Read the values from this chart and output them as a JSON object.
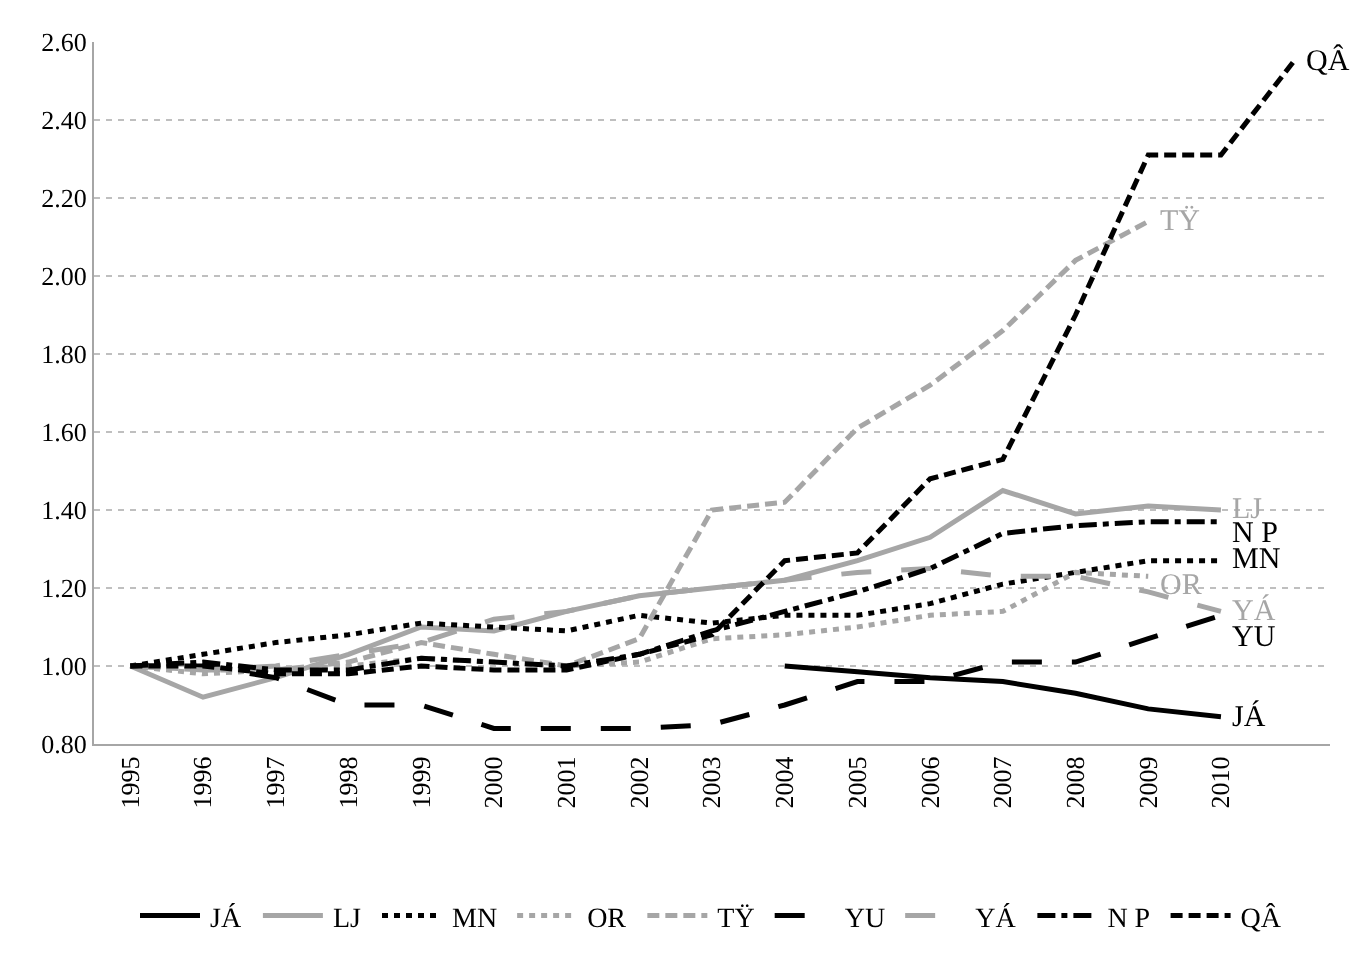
{
  "chart_data": {
    "type": "line",
    "categories": [
      "1995",
      "1996",
      "1997",
      "1998",
      "1999",
      "2000",
      "2001",
      "2002",
      "2003",
      "2004",
      "2005",
      "2006",
      "2007",
      "2008",
      "2009",
      "2010",
      null
    ],
    "series": [
      {
        "name": "JÁ",
        "color": "#000000",
        "line_style": "solid",
        "values": [
          null,
          null,
          null,
          null,
          null,
          null,
          null,
          null,
          null,
          1.0,
          0.985,
          0.97,
          0.96,
          0.93,
          0.89,
          0.87,
          null
        ]
      },
      {
        "name": "LJ",
        "color": "#a6a6a6",
        "line_style": "solid",
        "values": [
          1.0,
          0.92,
          0.97,
          1.03,
          1.1,
          1.09,
          1.14,
          1.18,
          1.2,
          1.22,
          1.27,
          1.33,
          1.45,
          1.39,
          1.41,
          1.4,
          null
        ]
      },
      {
        "name": "MN",
        "color": "#000000",
        "line_style": "dotted",
        "values": [
          1.0,
          1.03,
          1.06,
          1.08,
          1.11,
          1.1,
          1.09,
          1.13,
          1.11,
          1.13,
          1.13,
          1.16,
          1.21,
          1.24,
          1.27,
          1.27,
          null
        ]
      },
      {
        "name": "OR",
        "color": "#a6a6a6",
        "line_style": "dotted",
        "values": [
          1.0,
          0.98,
          0.99,
          1.0,
          1.02,
          1.01,
          1.0,
          1.01,
          1.07,
          1.08,
          1.1,
          1.13,
          1.14,
          1.24,
          1.23,
          null,
          null
        ]
      },
      {
        "name": "TŸ",
        "color": "#a6a6a6",
        "line_style": "dashed",
        "values": [
          1.0,
          0.99,
          0.99,
          1.01,
          1.06,
          1.03,
          1.0,
          1.07,
          1.4,
          1.42,
          1.61,
          1.72,
          1.86,
          2.04,
          2.14,
          null,
          null
        ]
      },
      {
        "name": "YU",
        "color": "#000000",
        "line_style": "longdash",
        "values": [
          1.0,
          1.0,
          0.97,
          0.9,
          0.9,
          0.84,
          0.84,
          0.84,
          0.85,
          0.9,
          0.96,
          0.96,
          1.01,
          1.01,
          1.07,
          1.13,
          null
        ]
      },
      {
        "name": "YÁ",
        "color": "#a6a6a6",
        "line_style": "longdash",
        "values": [
          1.0,
          0.99,
          1.0,
          1.03,
          1.06,
          1.12,
          1.14,
          1.18,
          1.2,
          1.22,
          1.24,
          1.25,
          1.23,
          1.23,
          1.19,
          1.14,
          null
        ]
      },
      {
        "name": "N P",
        "color": "#000000",
        "line_style": "dashdot",
        "values": [
          1.0,
          1.01,
          0.99,
          0.99,
          1.02,
          1.01,
          1.0,
          1.03,
          1.09,
          1.14,
          1.19,
          1.25,
          1.34,
          1.36,
          1.37,
          1.37,
          null
        ]
      },
      {
        "name": "QÂ",
        "color": "#000000",
        "line_style": "dashed",
        "values": [
          1.0,
          1.0,
          0.98,
          0.98,
          1.0,
          0.99,
          0.99,
          1.03,
          1.08,
          1.27,
          1.29,
          1.48,
          1.53,
          1.9,
          2.31,
          2.31,
          2.55
        ]
      }
    ],
    "ylim": [
      0.8,
      2.6
    ],
    "yticks": [
      {
        "value": 0.8,
        "label": "0.80"
      },
      {
        "value": 1.0,
        "label": "1.00"
      },
      {
        "value": 1.2,
        "label": "1.20"
      },
      {
        "value": 1.4,
        "label": "1.40"
      },
      {
        "value": 1.6,
        "label": "1.60"
      },
      {
        "value": 1.8,
        "label": "1.80"
      },
      {
        "value": 2.0,
        "label": "2.00"
      },
      {
        "value": 2.2,
        "label": "2.20"
      },
      {
        "value": 2.4,
        "label": "2.40"
      },
      {
        "value": 2.6,
        "label": "2.60"
      }
    ],
    "grid": "y",
    "legend": "bottom",
    "marker": "none"
  }
}
